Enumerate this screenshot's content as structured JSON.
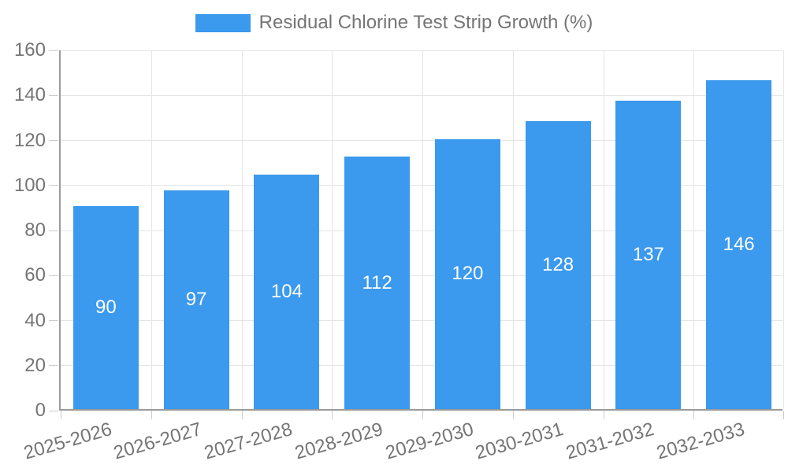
{
  "legend": {
    "label": "Residual Chlorine Test Strip Growth (%)"
  },
  "chart_data": {
    "type": "bar",
    "title": "Residual Chlorine Test Strip Growth (%)",
    "categories": [
      "2025-2026",
      "2026-2027",
      "2027-2028",
      "2028-2029",
      "2029-2030",
      "2030-2031",
      "2031-2032",
      "2032-2033"
    ],
    "values": [
      90,
      97,
      104,
      112,
      120,
      128,
      137,
      146
    ],
    "xlabel": "",
    "ylabel": "",
    "ylim": [
      0,
      160
    ],
    "ytick_step": 20,
    "ytick_labels": [
      "0",
      "20",
      "40",
      "60",
      "80",
      "100",
      "120",
      "140",
      "160"
    ],
    "grid": true,
    "legend_position": "top-center",
    "bar_color": "#3b99ee",
    "value_label_color": "#ffffff",
    "axis_text_color": "#757575",
    "gridline_color": "#e5e5e5",
    "axis_line_color": "#9b9b9b"
  }
}
